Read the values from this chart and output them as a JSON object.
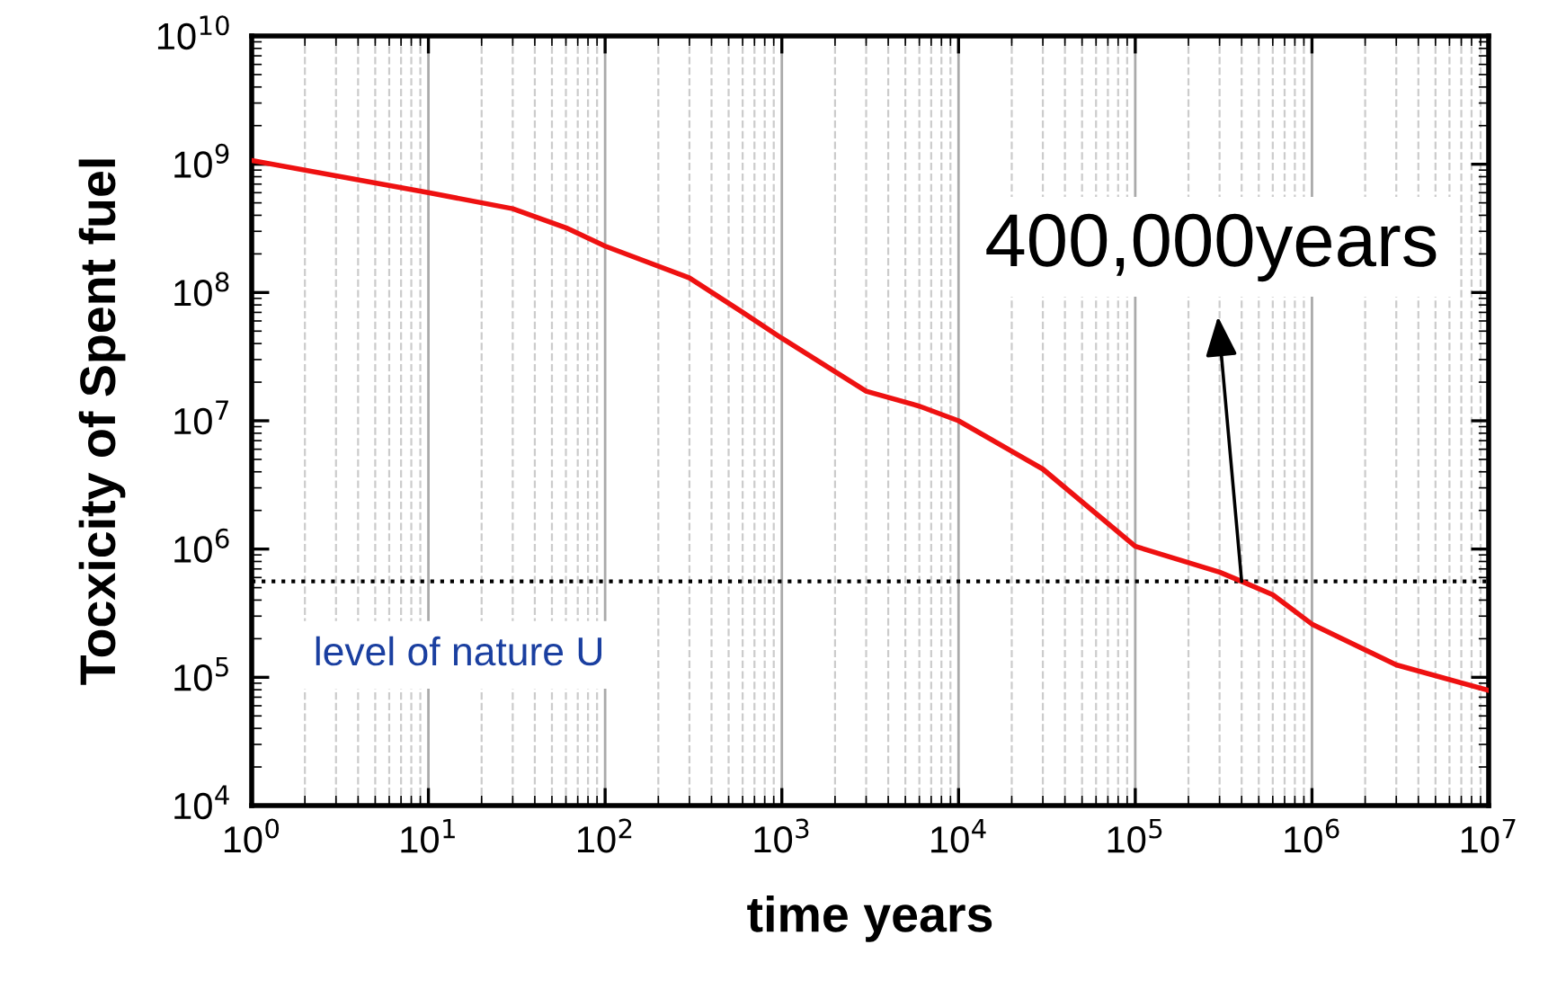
{
  "chart_data": {
    "type": "line",
    "xlabel": "time years",
    "ylabel": "Tocxicity of Spent fuel",
    "log": "xy",
    "grid": "x",
    "marker": "none",
    "line_style": "solid",
    "xlim": [
      1,
      10000000
    ],
    "ylim": [
      10000,
      10000000000
    ],
    "xticks": [
      {
        "value": 1,
        "label": "10$^{0}$"
      },
      {
        "value": 10,
        "label": "10$^{1}$"
      },
      {
        "value": 100,
        "label": "10$^{2}$"
      },
      {
        "value": 1000,
        "label": "10$^{3}$"
      },
      {
        "value": 10000,
        "label": "10$^{4}$"
      },
      {
        "value": 100000,
        "label": "10$^{5}$"
      },
      {
        "value": 1000000,
        "label": "10$^{6}$"
      },
      {
        "value": 10000000,
        "label": "10$^{7}$"
      }
    ],
    "yticks": [
      {
        "value": 10000,
        "label": "10$^{4}$"
      },
      {
        "value": 100000,
        "label": "10$^{5}$"
      },
      {
        "value": 1000000,
        "label": "10$^{6}$"
      },
      {
        "value": 10000000,
        "label": "10$^{7}$"
      },
      {
        "value": 100000000,
        "label": "10$^{8}$"
      },
      {
        "value": 1000000000,
        "label": "10$^{9}$"
      },
      {
        "value": 10000000000,
        "label": "10$^{10}$"
      }
    ],
    "x": [
      1,
      10,
      30,
      60,
      100,
      300,
      600,
      1000,
      3000,
      6000,
      10000,
      30000,
      100000,
      300000,
      400000,
      600000,
      1000000,
      3000000,
      10000000
    ],
    "series": [
      {
        "color": "#ee1111",
        "values": [
          1070000000,
          600000000,
          450000000,
          320000000,
          230000000,
          130000000,
          70000000,
          44000000,
          17000000,
          13000000,
          10000000,
          4200000,
          1050000,
          660000,
          560000,
          440000,
          260000,
          125000,
          79000
        ]
      }
    ],
    "ref_lines": [
      {
        "axis": "y",
        "value": 560000,
        "label": "level of nature U",
        "line_style": "dotted"
      }
    ],
    "annotations": [
      {
        "text": "400,000years",
        "x": 400000,
        "y": 560000
      }
    ]
  }
}
